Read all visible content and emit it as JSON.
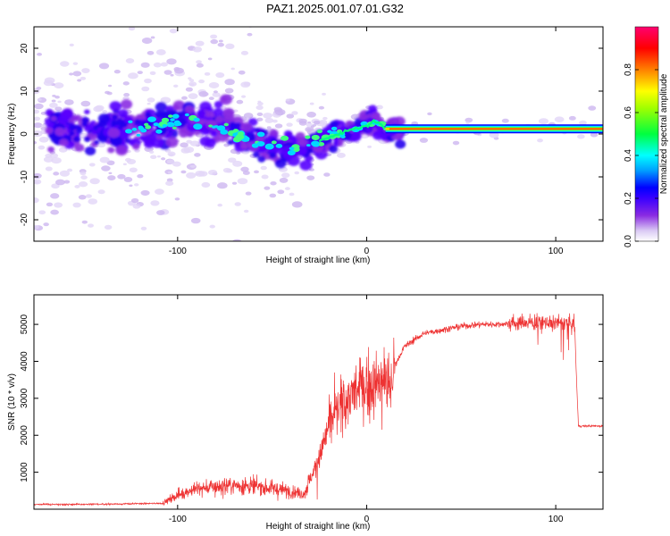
{
  "page": {
    "title": "PAZ1.2025.001.07.01.G32"
  },
  "chart_data": [
    {
      "type": "heatmap",
      "title": "PAZ1.2025.001.07.01.G32",
      "xlabel": "Height of straight line (km)",
      "ylabel": "Frequency (Hz)",
      "xlim": [
        -176,
        125
      ],
      "ylim": [
        -25,
        25
      ],
      "xticks": [
        -100,
        0,
        100
      ],
      "xtick_labels": [
        "-100",
        "0",
        "100"
      ],
      "yticks": [
        -20,
        -10,
        0,
        10,
        20
      ],
      "ytick_labels": [
        "-20",
        "-10",
        "0",
        "10",
        "20"
      ],
      "colorbar": {
        "label": "Normalized spectral amplitude",
        "range": [
          0,
          1
        ],
        "ticks": [
          0.0,
          0.2,
          0.4,
          0.6,
          0.8
        ],
        "tick_labels": [
          "0.0",
          "0.2",
          "0.4",
          "0.6",
          "0.8"
        ],
        "colors": [
          "#ffffff",
          "#cfb8f0",
          "#8a2be2",
          "#4b00ff",
          "#0000ff",
          "#00ffff",
          "#00ff00",
          "#ffff00",
          "#ff8000",
          "#ff0000",
          "#ff0080"
        ]
      },
      "ridge": {
        "x": [
          -176,
          -150,
          -125,
          -100,
          -90,
          -80,
          -70,
          -60,
          -50,
          -40,
          -33,
          -25,
          -15,
          -5,
          0,
          5,
          8,
          10,
          30,
          60,
          90,
          125
        ],
        "y": [
          1,
          1,
          1,
          3,
          3.5,
          2,
          0,
          -1.5,
          -2.5,
          -3.5,
          -3,
          -1.5,
          0,
          1.5,
          2,
          3,
          2,
          1,
          1,
          1.2,
          1.5,
          2
        ]
      }
    },
    {
      "type": "line",
      "title": "",
      "xlabel": "Height of straight line (km)",
      "ylabel": "SNR (10 * v/v)",
      "xlim": [
        -176,
        125
      ],
      "ylim": [
        0,
        5800
      ],
      "xticks": [
        -100,
        0,
        100
      ],
      "xtick_labels": [
        "-100",
        "0",
        "100"
      ],
      "yticks": [
        1000,
        2000,
        3000,
        4000,
        5000
      ],
      "ytick_labels": [
        "1000",
        "2000",
        "3000",
        "4000",
        "5000"
      ],
      "color": "#ee3333",
      "series": [
        {
          "x": [
            -176,
            -150,
            -120,
            -108,
            -100,
            -95,
            -90,
            -80,
            -70,
            -60,
            -50,
            -40,
            -33,
            -30,
            -25,
            -22,
            -20,
            -15,
            -10,
            -5,
            0,
            5,
            10,
            12,
            15,
            20,
            30,
            40,
            50,
            60,
            70,
            80,
            90,
            100,
            110,
            111,
            112,
            125
          ],
          "y": [
            130,
            130,
            150,
            160,
            380,
            480,
            550,
            600,
            650,
            620,
            560,
            480,
            420,
            800,
            1400,
            1900,
            2300,
            2700,
            3000,
            3200,
            3300,
            3350,
            3500,
            3200,
            3900,
            4400,
            4750,
            4850,
            4950,
            5000,
            5000,
            5050,
            5050,
            5050,
            5000,
            3500,
            2250,
            2250
          ]
        }
      ]
    }
  ]
}
